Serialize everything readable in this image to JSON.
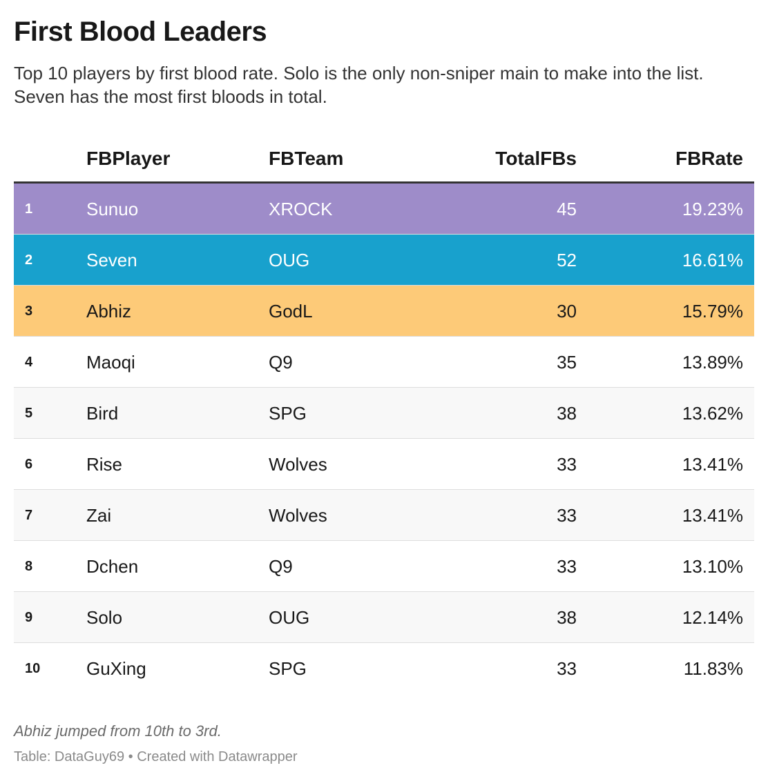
{
  "header": {
    "title": "First Blood Leaders",
    "subtitle": "Top 10 players by first blood rate. Solo is the only non-sniper main to make into the list. Seven has the most first bloods in total."
  },
  "chart_data": {
    "type": "table",
    "columns": [
      "",
      "FBPlayer",
      "FBTeam",
      "TotalFBs",
      "FBRate"
    ],
    "rows": [
      {
        "rank": "1",
        "player": "Sunuo",
        "team": "XROCK",
        "total": "45",
        "rate": "19.23%",
        "highlight": "#9e8cc9",
        "text_color": "#ffffff"
      },
      {
        "rank": "2",
        "player": "Seven",
        "team": "OUG",
        "total": "52",
        "rate": "16.61%",
        "highlight": "#18a1cd",
        "text_color": "#ffffff"
      },
      {
        "rank": "3",
        "player": "Abhiz",
        "team": "GodL",
        "total": "30",
        "rate": "15.79%",
        "highlight": "#fdca78",
        "text_color": "#181818"
      },
      {
        "rank": "4",
        "player": "Maoqi",
        "team": "Q9",
        "total": "35",
        "rate": "13.89%"
      },
      {
        "rank": "5",
        "player": "Bird",
        "team": "SPG",
        "total": "38",
        "rate": "13.62%"
      },
      {
        "rank": "6",
        "player": "Rise",
        "team": "Wolves",
        "total": "33",
        "rate": "13.41%"
      },
      {
        "rank": "7",
        "player": "Zai",
        "team": "Wolves",
        "total": "33",
        "rate": "13.41%"
      },
      {
        "rank": "8",
        "player": "Dchen",
        "team": "Q9",
        "total": "33",
        "rate": "13.10%"
      },
      {
        "rank": "9",
        "player": "Solo",
        "team": "OUG",
        "total": "38",
        "rate": "12.14%"
      },
      {
        "rank": "10",
        "player": "GuXing",
        "team": "SPG",
        "total": "33",
        "rate": "11.83%"
      }
    ]
  },
  "footer": {
    "note": "Abhiz jumped from 10th to 3rd.",
    "source": "Table: DataGuy69 • Created with Datawrapper"
  }
}
